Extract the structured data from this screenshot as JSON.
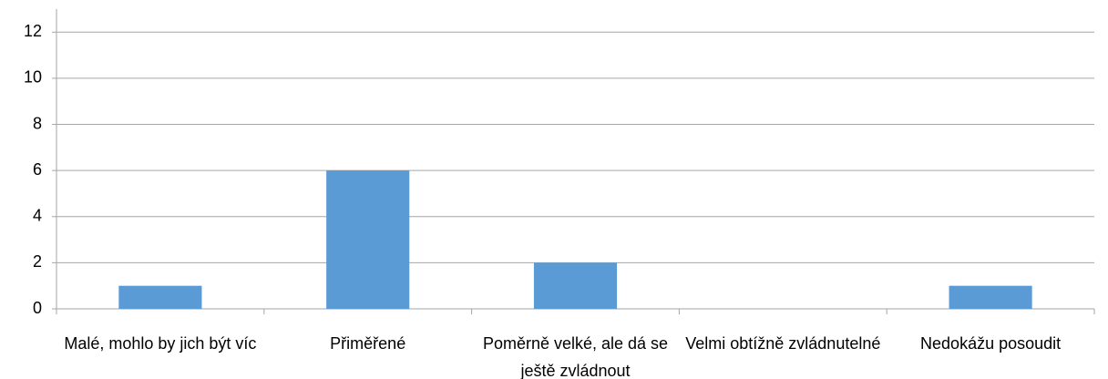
{
  "chart_data": {
    "type": "bar",
    "categories": [
      "Malé, mohlo by jich být víc",
      "Přiměřené",
      "Poměrně velké, ale dá se ještě zvládnout",
      "Velmi obtížně zvládnutelné",
      "Nedokážu posoudit"
    ],
    "values": [
      1,
      6,
      2,
      0,
      1
    ],
    "color": "#5b9bd5",
    "ylim": [
      0,
      13
    ],
    "yticks": [
      0,
      2,
      4,
      6,
      8,
      10,
      12
    ],
    "grid": true
  }
}
